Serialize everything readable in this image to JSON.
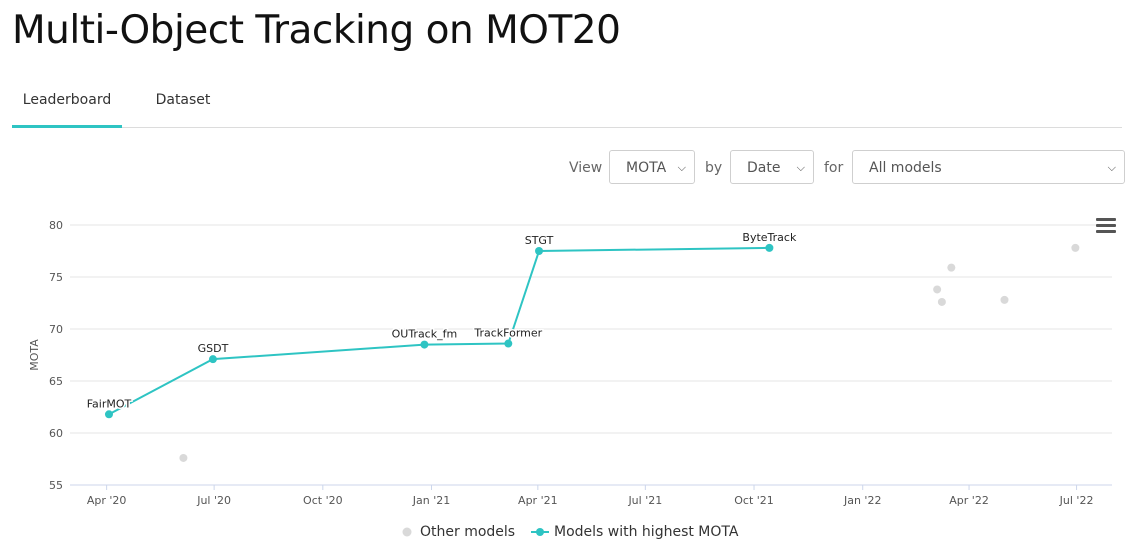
{
  "page": {
    "title": "Multi-Object Tracking on MOT20"
  },
  "tabs": [
    {
      "label": "Leaderboard",
      "active": true
    },
    {
      "label": "Dataset",
      "active": false
    }
  ],
  "controls": {
    "view_label": "View",
    "metric_value": "MOTA",
    "by_label": "by",
    "order_value": "Date",
    "for_label": "for",
    "filter_value": "All models"
  },
  "colors": {
    "accent": "#2ec4c3",
    "other": "#d9d9d9",
    "grid": "#e6e6e6"
  },
  "icons": {
    "chart_menu": "hamburger-menu-icon",
    "select_arrow": "chevron-down-icon"
  },
  "chart_data": {
    "type": "scatter",
    "ylabel": "MOTA",
    "xlabel": "",
    "ylim": [
      55,
      80
    ],
    "yticks": [
      55,
      60,
      65,
      70,
      75,
      80
    ],
    "xlim": [
      "2020-03-01",
      "2022-07-31"
    ],
    "xticks": [
      {
        "date": "2020-04-01",
        "label": "Apr '20"
      },
      {
        "date": "2020-07-01",
        "label": "Jul '20"
      },
      {
        "date": "2020-10-01",
        "label": "Oct '20"
      },
      {
        "date": "2021-01-01",
        "label": "Jan '21"
      },
      {
        "date": "2021-04-01",
        "label": "Apr '21"
      },
      {
        "date": "2021-07-01",
        "label": "Jul '21"
      },
      {
        "date": "2021-10-01",
        "label": "Oct '21"
      },
      {
        "date": "2022-01-01",
        "label": "Jan '22"
      },
      {
        "date": "2022-04-01",
        "label": "Apr '22"
      },
      {
        "date": "2022-07-01",
        "label": "Jul '22"
      }
    ],
    "grid": true,
    "legend_position": "bottom-center",
    "series": [
      {
        "name": "Other models",
        "style": "points",
        "points": [
          {
            "x": "2020-06-05",
            "y": 57.6
          },
          {
            "x": "2022-03-05",
            "y": 73.8
          },
          {
            "x": "2022-03-09",
            "y": 72.6
          },
          {
            "x": "2022-03-17",
            "y": 75.9
          },
          {
            "x": "2022-05-01",
            "y": 72.8
          },
          {
            "x": "2022-06-30",
            "y": 77.8
          }
        ]
      },
      {
        "name": "Models with highest MOTA",
        "style": "line",
        "points": [
          {
            "x": "2020-04-03",
            "y": 61.8,
            "label": "FairMOT"
          },
          {
            "x": "2020-06-30",
            "y": 67.1,
            "label": "GSDT"
          },
          {
            "x": "2020-12-26",
            "y": 68.5,
            "label": "OUTrack_fm"
          },
          {
            "x": "2021-03-07",
            "y": 68.6,
            "label": "TrackFormer"
          },
          {
            "x": "2021-04-02",
            "y": 77.5,
            "label": "STGT"
          },
          {
            "x": "2021-10-14",
            "y": 77.8,
            "label": "ByteTrack"
          }
        ]
      }
    ]
  }
}
